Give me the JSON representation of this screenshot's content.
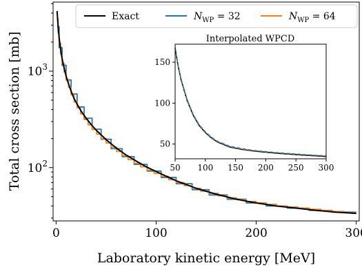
{
  "chart_data": [
    {
      "type": "line",
      "xlabel": "Laboratory kinetic energy [MeV]",
      "ylabel": "Total cross section [mb]",
      "yscale": "log",
      "xlim": [
        -3,
        303
      ],
      "ylim": [
        28,
        5200
      ],
      "xticks": [
        0,
        100,
        200,
        300
      ],
      "yticks": [
        {
          "value": 100,
          "base": "10",
          "exp": "2"
        },
        {
          "value": 1000,
          "base": "10",
          "exp": "3"
        }
      ],
      "legend_position": "top",
      "legend": [
        {
          "base": "Exact",
          "sub": "",
          "rest": ""
        },
        {
          "base": "N",
          "sub": "WP",
          "rest": " = 32"
        },
        {
          "base": "N",
          "sub": "WP",
          "rest": " = 64"
        }
      ],
      "series": [
        {
          "name": "Exact",
          "color": "#000000",
          "style": "solid",
          "x": [
            1,
            2,
            3,
            4,
            5,
            6,
            8,
            10,
            12,
            15,
            18,
            20,
            25,
            30,
            35,
            40,
            50,
            60,
            70,
            80,
            90,
            100,
            120,
            140,
            160,
            180,
            200,
            220,
            240,
            260,
            280,
            300
          ],
          "y": [
            4200,
            2900,
            2250,
            1850,
            1560,
            1350,
            1080,
            890,
            760,
            620,
            520,
            475,
            385,
            325,
            280,
            245,
            195,
            160,
            135,
            117,
            102,
            91,
            73,
            61,
            53,
            47,
            43,
            40,
            38,
            36,
            34.5,
            33.5
          ]
        },
        {
          "name": "N_WP = 32",
          "color": "#1f77b4",
          "style": "step",
          "edges": [
            1,
            3,
            6,
            10,
            15,
            21,
            28,
            36,
            45,
            55,
            66,
            78,
            91,
            105,
            120,
            136,
            153,
            171,
            190,
            210,
            231,
            253,
            276,
            300
          ],
          "values": [
            2900,
            1750,
            1150,
            810,
            580,
            425,
            325,
            250,
            197,
            157,
            130,
            108,
            92,
            79,
            68,
            59,
            52,
            47,
            43,
            40,
            38,
            36,
            34.5
          ]
        },
        {
          "name": "N_WP = 64",
          "color": "#ff7f0e",
          "style": "step",
          "edges": [
            1,
            2,
            3,
            4.5,
            6,
            8,
            10,
            12.5,
            15,
            18,
            21,
            24.5,
            28,
            32,
            36,
            40.5,
            45,
            50,
            55,
            60.5,
            66,
            72,
            78,
            84.5,
            91,
            98,
            105,
            112.5,
            120,
            128,
            136,
            144.5,
            153,
            162,
            171,
            180.5,
            190,
            200,
            210,
            220.5,
            231,
            242,
            253,
            264.5,
            276,
            288,
            300
          ],
          "values": [
            3500,
            2500,
            1950,
            1500,
            1200,
            980,
            820,
            680,
            570,
            480,
            415,
            360,
            315,
            278,
            248,
            222,
            200,
            180,
            163,
            147,
            133,
            121,
            111,
            102,
            94,
            87,
            81,
            75,
            70,
            65,
            61,
            57,
            54,
            51,
            48.5,
            46.5,
            44.5,
            43,
            41.5,
            40,
            39,
            38,
            37,
            36,
            35,
            34
          ]
        }
      ]
    },
    {
      "type": "line",
      "title": "Interpolated WPCD",
      "xlim": [
        50,
        300
      ],
      "ylim": [
        32,
        172
      ],
      "xticks": [
        50,
        100,
        150,
        200,
        250,
        300
      ],
      "yticks": [
        50,
        100,
        150
      ],
      "series": [
        {
          "name": "Exact",
          "color": "#000000",
          "style": "solid",
          "x": [
            50,
            55,
            60,
            70,
            80,
            90,
            100,
            110,
            120,
            140,
            160,
            180,
            200,
            220,
            240,
            260,
            280,
            300
          ],
          "y": [
            167,
            145,
            128,
            103,
            85,
            72.5,
            64,
            57.5,
            52.5,
            46.5,
            43.5,
            41.5,
            40,
            38.7,
            37.6,
            36.6,
            35.7,
            34.8
          ]
        },
        {
          "name": "N_WP = 32",
          "color": "#1f77b4",
          "style": "dashed",
          "x": [
            50,
            55,
            60,
            70,
            80,
            90,
            100,
            110,
            120,
            140,
            160,
            180,
            200,
            220,
            240,
            260,
            280,
            300
          ],
          "y": [
            168,
            146,
            129,
            104,
            86,
            73.5,
            65,
            58.5,
            53.5,
            47.5,
            44.5,
            42.3,
            40.8,
            39.5,
            38.4,
            37.4,
            36.5,
            35.6
          ]
        },
        {
          "name": "N_WP = 64",
          "color": "#ff7f0e",
          "style": "dashed",
          "x": [
            50,
            55,
            60,
            70,
            80,
            90,
            100,
            110,
            120,
            140,
            160,
            180,
            200,
            220,
            240,
            260,
            280,
            300
          ],
          "y": [
            167.5,
            145.5,
            128.5,
            103.5,
            85.5,
            73,
            64.5,
            58,
            53,
            47,
            44,
            42,
            40.5,
            39.2,
            38.1,
            37.1,
            36.2,
            35.3
          ]
        }
      ]
    }
  ]
}
